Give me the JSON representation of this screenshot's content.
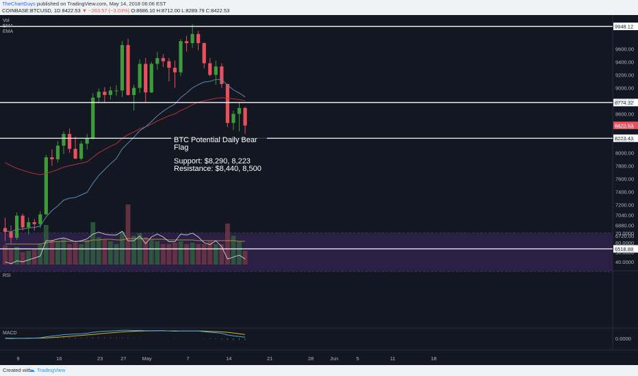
{
  "header": {
    "user": "TheChartGuys",
    "published": "published on TradingView.com, May 14, 2018 06:06 EST",
    "symbol_line": "COINBASE:BTCUSD, 1D 8422.53",
    "change": "▼ −263.57 (−3.03%)",
    "ohlc": "O:8686.10 H:8712.00 L:8289.79 C:8422.53"
  },
  "overlays": {
    "vol": "Vol",
    "ema1": "EMA",
    "ema2": "EMA",
    "rsi": "RSI",
    "macd": "MACD"
  },
  "annotation": {
    "title": "BTC Potential Daily Bear Flag",
    "support": "Support: $8,290, 8,223",
    "resistance": "Resistance: $8,440, 8,500"
  },
  "footer": {
    "created": "Created with",
    "brand": "TradingView"
  },
  "colors": {
    "bg": "#131722",
    "up": "#3f9a3b",
    "down": "#e8515c",
    "ema_fast": "#5d8bb0",
    "ema_slow": "#b8323a",
    "vol_ma": "#b88a3e",
    "rsi_line": "#d1d4dc",
    "rsi_band": "#2a1f45",
    "macd_line": "#4fa8e0",
    "signal_line": "#d4b52c",
    "white_level": "#ffffff"
  },
  "chart_data": {
    "type": "candlestick",
    "symbol": "COINBASE:BTCUSD",
    "interval": "1D",
    "yaxis_ticks": [
      6720,
      6880,
      7040,
      7200,
      7400,
      7600,
      7800,
      8000,
      8200,
      8400,
      8600,
      8800,
      9000,
      9200,
      9400,
      9600
    ],
    "yaxis_tick_labels": [
      "6720.00",
      "6880.00",
      "7040.00",
      "7200.00",
      "7400.00",
      "7600.00",
      "7800.00",
      "8000.00",
      "8200.00",
      "8400.00",
      "8600.00",
      "8800.00",
      "9000.00",
      "9200.00",
      "9400.00",
      "9600.00"
    ],
    "x_tick_labels": [
      "9",
      "16",
      "23",
      "27",
      "May",
      "7",
      "14",
      "21",
      "28",
      "Jun",
      "5",
      "11",
      "18"
    ],
    "x_tick_index": [
      0,
      7,
      14,
      18,
      22,
      29,
      36,
      43,
      50,
      54,
      58,
      64,
      71
    ],
    "levels": [
      {
        "value": 9948.12,
        "label": "9948.12"
      },
      {
        "value": 8774.32,
        "label": "8774.32"
      },
      {
        "value": 8223.43,
        "label": "8223.43"
      },
      {
        "value": 6518.88,
        "label": "6518.88"
      }
    ],
    "last_price": {
      "value": 8422.53,
      "label": "8422.53"
    },
    "candles": [
      [
        6840,
        7000,
        6640,
        6780
      ],
      [
        6780,
        6880,
        6600,
        6690
      ],
      [
        6690,
        7080,
        6660,
        7030
      ],
      [
        7030,
        7060,
        6800,
        6850
      ],
      [
        6850,
        7000,
        6740,
        6930
      ],
      [
        6930,
        6980,
        6800,
        6900
      ],
      [
        6900,
        7100,
        6840,
        7050
      ],
      [
        7050,
        7970,
        7040,
        7930
      ],
      [
        7930,
        8050,
        7800,
        7900
      ],
      [
        7900,
        8180,
        7850,
        8110
      ],
      [
        8110,
        8330,
        7980,
        8290
      ],
      [
        8290,
        8370,
        8000,
        8060
      ],
      [
        8060,
        8250,
        7900,
        7910
      ],
      [
        7910,
        8180,
        7880,
        8140
      ],
      [
        8140,
        8290,
        8050,
        8220
      ],
      [
        8220,
        8920,
        8200,
        8850
      ],
      [
        8850,
        8990,
        8780,
        8940
      ],
      [
        8940,
        9010,
        8780,
        8890
      ],
      [
        8890,
        9020,
        8820,
        8960
      ],
      [
        8960,
        9040,
        8880,
        8960
      ],
      [
        8960,
        9720,
        8860,
        9660
      ],
      [
        9660,
        9760,
        8880,
        8890
      ],
      [
        8890,
        9050,
        8650,
        9000
      ],
      [
        9000,
        9440,
        8920,
        9370
      ],
      [
        9370,
        9460,
        8780,
        8930
      ],
      [
        8930,
        9400,
        8920,
        9370
      ],
      [
        9370,
        9550,
        9280,
        9460
      ],
      [
        9460,
        9520,
        9320,
        9410
      ],
      [
        9410,
        9460,
        9100,
        9310
      ],
      [
        9310,
        9420,
        9000,
        9240
      ],
      [
        9240,
        9750,
        9180,
        9720
      ],
      [
        9720,
        9800,
        9560,
        9690
      ],
      [
        9690,
        9980,
        9620,
        9830
      ],
      [
        9830,
        9880,
        9580,
        9690
      ],
      [
        9690,
        9700,
        9300,
        9380
      ],
      [
        9380,
        9460,
        9180,
        9200
      ],
      [
        9200,
        9420,
        9050,
        9330
      ],
      [
        9330,
        9380,
        9000,
        9060
      ],
      [
        9060,
        9060,
        8400,
        8460
      ],
      [
        8460,
        8650,
        8350,
        8600
      ],
      [
        8600,
        8780,
        8330,
        8690
      ],
      [
        8690,
        8710,
        8290,
        8420
      ]
    ],
    "ema_fast": [
      6800,
      6780,
      6820,
      6825,
      6840,
      6850,
      6870,
      7010,
      7110,
      7180,
      7270,
      7300,
      7310,
      7350,
      7390,
      7530,
      7650,
      7740,
      7830,
      7910,
      8060,
      8150,
      8240,
      8340,
      8400,
      8480,
      8570,
      8640,
      8700,
      8750,
      8850,
      8920,
      9000,
      9050,
      9090,
      9100,
      9130,
      9130,
      9040,
      8970,
      8920,
      8860
    ],
    "ema_slow": [
      7850,
      7800,
      7760,
      7730,
      7700,
      7680,
      7660,
      7680,
      7710,
      7740,
      7780,
      7800,
      7820,
      7840,
      7860,
      7930,
      8000,
      8050,
      8100,
      8140,
      8220,
      8280,
      8320,
      8370,
      8400,
      8440,
      8490,
      8530,
      8570,
      8600,
      8650,
      8690,
      8740,
      8780,
      8800,
      8820,
      8840,
      8850,
      8840,
      8830,
      8820,
      8800
    ],
    "volume": [
      28,
      22,
      26,
      18,
      20,
      22,
      30,
      58,
      36,
      34,
      38,
      30,
      32,
      30,
      36,
      62,
      40,
      36,
      34,
      30,
      48,
      88,
      42,
      46,
      40,
      36,
      34,
      30,
      30,
      32,
      34,
      30,
      32,
      30,
      30,
      34,
      30,
      30,
      60,
      42,
      34,
      20
    ],
    "volume_ma": [
      30,
      30,
      30,
      30,
      30,
      30,
      30,
      32,
      33,
      34,
      34,
      34,
      34,
      34,
      34,
      36,
      36,
      37,
      37,
      36,
      36,
      38,
      38,
      38,
      38,
      37,
      37,
      37,
      36,
      36,
      36,
      36,
      36,
      35,
      35,
      35,
      35,
      35,
      35,
      35,
      34,
      34
    ],
    "rsi": [
      40,
      38,
      41,
      40,
      42,
      44,
      46,
      62,
      62,
      64,
      65,
      63,
      61,
      62,
      64,
      69,
      71,
      69,
      68,
      68,
      72,
      62,
      62,
      67,
      59,
      66,
      69,
      66,
      61,
      61,
      69,
      68,
      70,
      66,
      60,
      58,
      62,
      56,
      43,
      45,
      47,
      43
    ],
    "rsi_levels": [
      30,
      70
    ],
    "rsi_ticks": [
      {
        "value": 70,
        "label": "70.0000"
      },
      {
        "value": 60,
        "label": "60.0000"
      },
      {
        "value": 50,
        "label": "50.0000"
      },
      {
        "value": 40,
        "label": "40.0000"
      }
    ],
    "macd": [
      0,
      -2,
      0,
      1,
      2,
      3,
      5,
      14,
      20,
      26,
      32,
      35,
      38,
      40,
      44,
      52,
      58,
      62,
      64,
      66,
      70,
      70,
      68,
      69,
      66,
      66,
      67,
      66,
      64,
      62,
      64,
      64,
      65,
      63,
      58,
      52,
      49,
      43,
      30,
      22,
      16,
      10
    ],
    "signal": [
      2,
      1,
      1,
      1,
      1,
      2,
      2,
      4,
      7,
      10,
      14,
      18,
      22,
      26,
      30,
      34,
      39,
      44,
      48,
      52,
      56,
      59,
      61,
      63,
      64,
      65,
      66,
      66,
      65,
      65,
      64,
      64,
      64,
      64,
      63,
      61,
      59,
      56,
      52,
      46,
      40,
      34
    ],
    "macd_ticks": [
      {
        "value": 0,
        "label": "0.0000"
      }
    ]
  }
}
